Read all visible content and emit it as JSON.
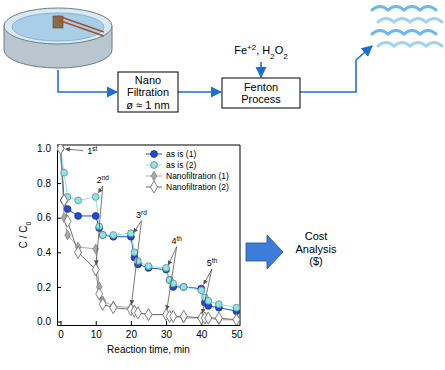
{
  "diagram": {
    "nano_box": {
      "lines": [
        "Nano",
        "Filtration",
        "ø ≈ 1 nm"
      ]
    },
    "reagents": "Fe+2, H2O2",
    "fenton_box": {
      "lines": [
        "Fenton",
        "Process"
      ]
    },
    "cost": {
      "lines": [
        "Cost",
        "Analysis",
        "($)"
      ]
    }
  },
  "chart_data": {
    "type": "line",
    "x_label": "Reaction time, min",
    "y_label": "C / C0",
    "x": [
      0,
      1,
      2,
      5,
      10,
      11,
      12,
      15,
      20,
      21,
      22,
      25,
      30,
      31,
      32,
      35,
      40,
      41,
      42,
      45,
      50
    ],
    "series": [
      {
        "name": "as is (1)",
        "color": "#2449d8",
        "marker": "circle",
        "values": [
          1.0,
          0.7,
          0.65,
          0.61,
          0.61,
          0.54,
          0.5,
          0.49,
          0.49,
          0.37,
          0.33,
          0.31,
          0.3,
          0.24,
          0.2,
          0.2,
          0.19,
          0.11,
          0.09,
          0.08,
          0.06
        ]
      },
      {
        "name": "as is (2)",
        "color": "#8fe3e3",
        "marker": "circle",
        "values": [
          1.0,
          0.86,
          0.72,
          0.7,
          0.72,
          0.55,
          0.5,
          0.5,
          0.51,
          0.4,
          0.35,
          0.32,
          0.31,
          0.24,
          0.22,
          0.2,
          0.18,
          0.14,
          0.12,
          0.1,
          0.08
        ]
      },
      {
        "name": "Nanofiltration (1)",
        "color": "#a9a9a9",
        "marker": "diamond",
        "values": [
          1.0,
          0.6,
          0.5,
          0.43,
          0.42,
          0.2,
          0.12,
          0.09,
          0.08,
          0.06,
          0.05,
          0.04,
          0.04,
          0.03,
          0.03,
          0.02,
          0.02,
          0.02,
          0.02,
          0.01,
          0.01
        ]
      },
      {
        "name": "Nanofiltration (2)",
        "color": "#707070",
        "marker": "diamond-open",
        "values": [
          1.0,
          0.7,
          0.58,
          0.4,
          0.3,
          0.16,
          0.1,
          0.08,
          0.07,
          0.06,
          0.05,
          0.04,
          0.04,
          0.03,
          0.03,
          0.03,
          0.02,
          0.02,
          0.02,
          0.02,
          0.01
        ]
      }
    ],
    "xlim": [
      -1,
      51
    ],
    "xticks": [
      0,
      10,
      20,
      30,
      40,
      50
    ],
    "ylim": [
      -0.02,
      1.02
    ],
    "yticks": [
      {
        "value": 0,
        "label": "0.0"
      },
      0.2,
      0.4,
      0.6,
      0.8,
      {
        "value": 1,
        "label": "1.0"
      }
    ],
    "annotations": [
      "1st",
      "2nd",
      "3rd",
      "4th",
      "5th"
    ],
    "legend": "upper right"
  }
}
